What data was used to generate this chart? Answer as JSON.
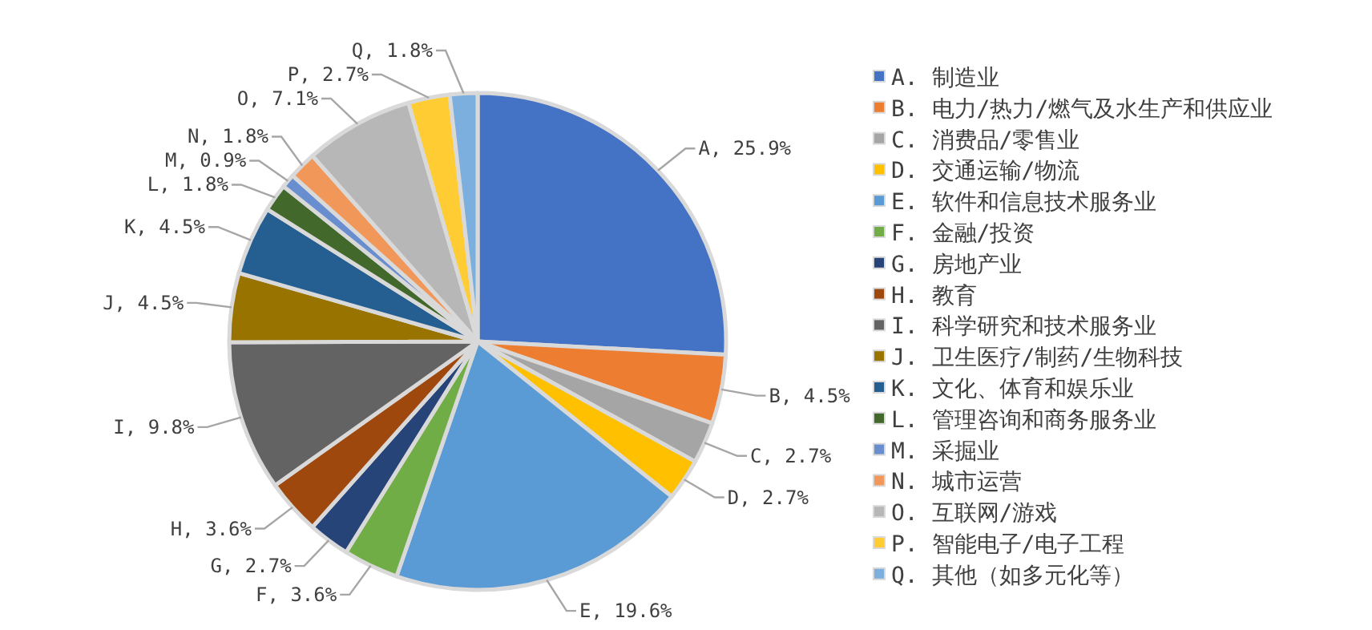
{
  "chart_data": {
    "type": "pie",
    "legend": "right",
    "categories": [
      "A. 制造业",
      "B. 电力/热力/燃气及水生产和供应业",
      "C. 消费品/零售业",
      "D. 交通运输/物流",
      "E. 软件和信息技术服务业",
      "F. 金融/投资",
      "G. 房地产业",
      "H. 教育",
      "I. 科学研究和技术服务业",
      "J. 卫生医疗/制药/生物科技",
      "K. 文化、体育和娱乐业",
      "L. 管理咨询和商务服务业",
      "M. 采掘业",
      "N. 城市运营",
      "O. 互联网/游戏",
      "P. 智能电子/电子工程",
      "Q. 其他（如多元化等）"
    ],
    "values": [
      25.9,
      4.5,
      2.7,
      2.7,
      19.6,
      3.6,
      2.7,
      3.6,
      9.8,
      4.5,
      4.5,
      1.8,
      0.9,
      1.8,
      7.1,
      2.7,
      1.8
    ],
    "colors": [
      "#4472c4",
      "#ed7d31",
      "#a5a5a5",
      "#ffc000",
      "#5b9bd5",
      "#70ad47",
      "#264478",
      "#9e480e",
      "#636363",
      "#997300",
      "#255e91",
      "#43682b",
      "#698ed0",
      "#f1975a",
      "#b7b7b7",
      "#ffcd33",
      "#7cafdd"
    ],
    "value_labels": [
      "A, 25.9%",
      "B, 4.5%",
      "C, 2.7%",
      "D, 2.7%",
      "E, 19.6%",
      "F, 3.6%",
      "G, 2.7%",
      "H, 3.6%",
      "I, 9.8%",
      "J, 4.5%",
      "K, 4.5%",
      "L, 1.8%",
      "M, 0.9%",
      "N, 1.8%",
      "O, 7.1%",
      "P, 2.7%",
      "Q, 1.8%"
    ]
  }
}
